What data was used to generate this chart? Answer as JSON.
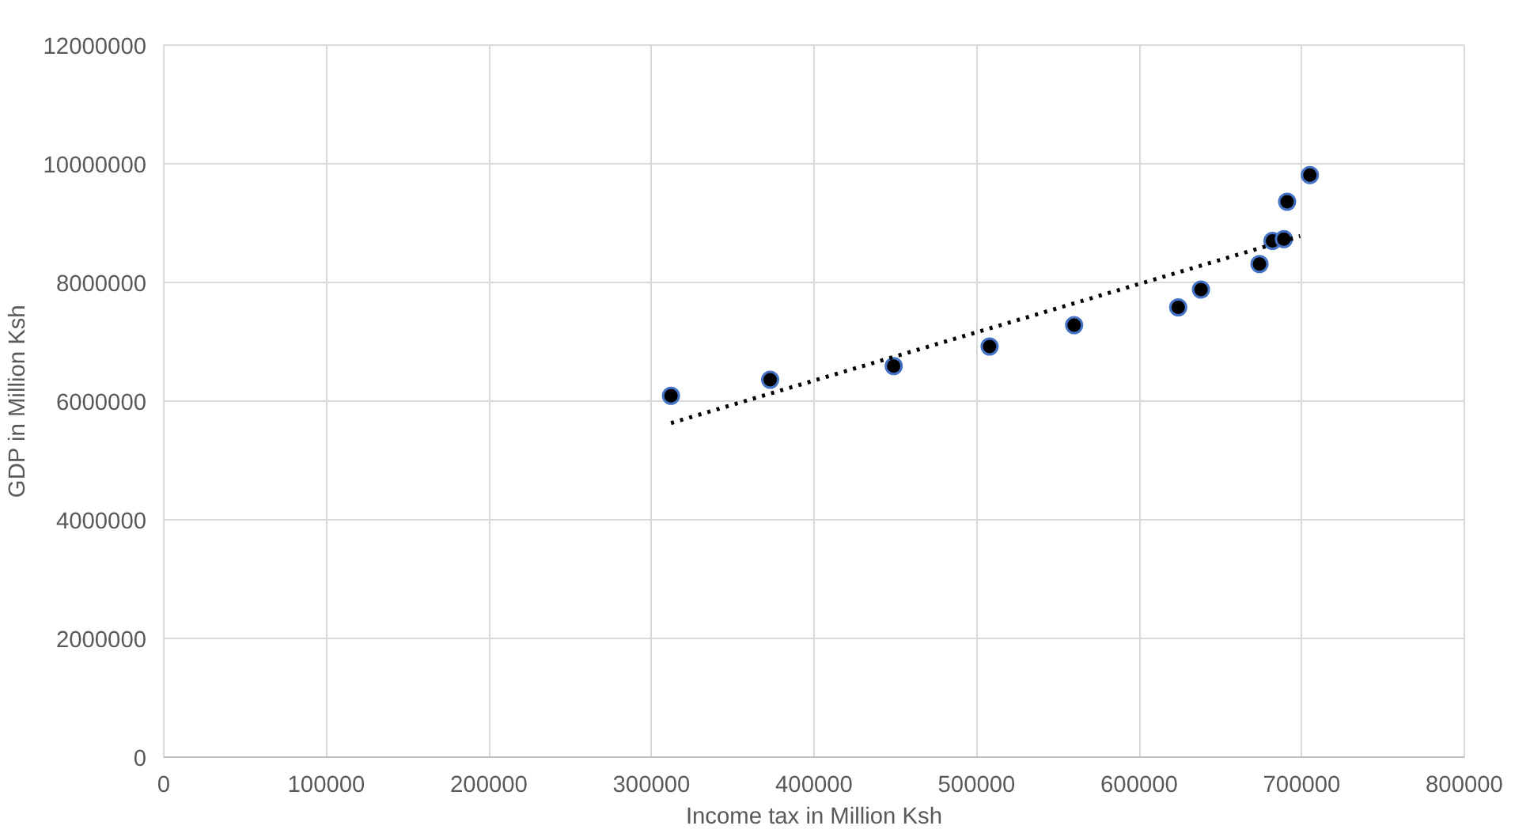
{
  "chart_data": {
    "type": "scatter",
    "xlabel": "Income tax in Million Ksh",
    "ylabel": "GDP in Million Ksh",
    "xlim": [
      0,
      800000
    ],
    "xticks": [
      0,
      100000,
      200000,
      300000,
      400000,
      500000,
      600000,
      700000,
      800000
    ],
    "ylim": [
      0,
      12000000
    ],
    "yticks": [
      0,
      2000000,
      4000000,
      6000000,
      8000000,
      10000000,
      12000000
    ],
    "grid": true,
    "marker": "circle",
    "series": [
      {
        "color": "#000000",
        "x": [
          312000,
          373000,
          449000,
          508000,
          560000,
          624000,
          638000,
          674000,
          682000,
          689000,
          691000,
          705000
        ],
        "values": [
          6090000,
          6360000,
          6590000,
          6920000,
          7280000,
          7580000,
          7880000,
          8310000,
          8700000,
          8730000,
          9360000,
          9810000
        ]
      },
      {
        "type": "line",
        "color": "#000000",
        "line_style": "dotted",
        "marker": "none",
        "x": [
          312000,
          699000
        ],
        "values": [
          5630000,
          8780000
        ]
      }
    ]
  }
}
